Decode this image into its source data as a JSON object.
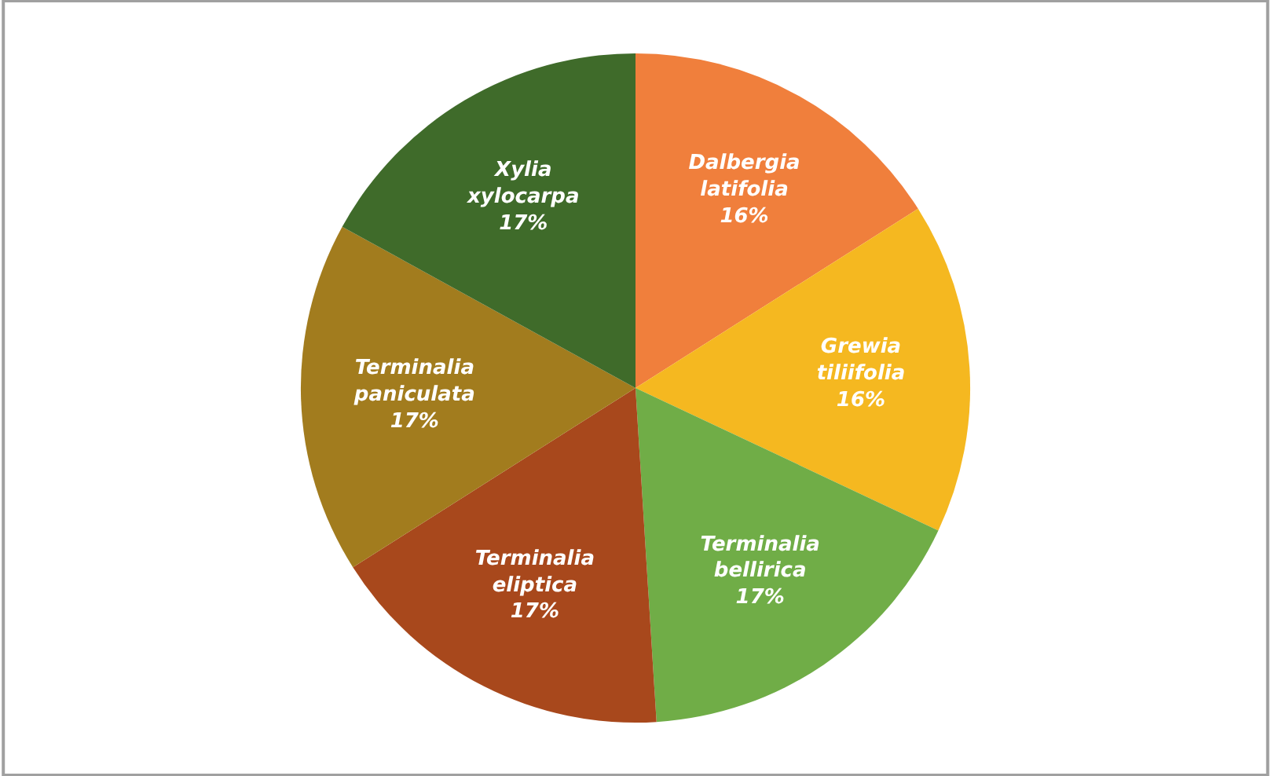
{
  "chart_data": {
    "type": "pie",
    "categories": [
      "Dalbergia latifolia",
      "Grewia tiliifolia",
      "Terminalia bellirica",
      "Terminalia eliptica",
      "Terminalia paniculata",
      "Xylia xylocarpa"
    ],
    "values": [
      16,
      16,
      17,
      17,
      17,
      17
    ],
    "value_labels": [
      "16%",
      "16%",
      "17%",
      "17%",
      "17%",
      "17%"
    ],
    "colors": [
      "#f07f3c",
      "#f5b820",
      "#70ad47",
      "#a8481c",
      "#a27c1e",
      "#3f6b2a"
    ],
    "legend": false
  }
}
